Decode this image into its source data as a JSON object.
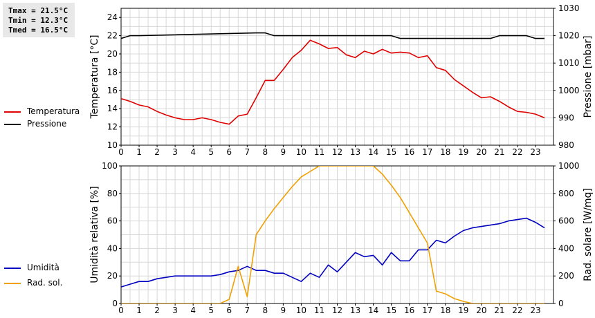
{
  "stats": {
    "tmax": "Tmax = 21.5°C",
    "tmin": "Tmin = 12.3°C",
    "tmed": "Tmed = 16.5°C"
  },
  "chart_data": [
    {
      "type": "line",
      "xlim": [
        0,
        24
      ],
      "x_ticks": [
        "0",
        "1",
        "2",
        "3",
        "4",
        "5",
        "6",
        "7",
        "8",
        "9",
        "10",
        "11",
        "12",
        "13",
        "14",
        "15",
        "16",
        "17",
        "18",
        "19",
        "20",
        "21",
        "22",
        "23"
      ],
      "ylabel": "Temperatura [°C]",
      "ylim": [
        10,
        25
      ],
      "y_ticks": [
        "10",
        "12",
        "14",
        "16",
        "18",
        "20",
        "22",
        "24"
      ],
      "y2label": "Pressione [mbar]",
      "y2lim": [
        980,
        1030
      ],
      "y2_ticks": [
        "980",
        "990",
        "1000",
        "1010",
        "1020",
        "1030"
      ],
      "grid": true,
      "legend_position": "left",
      "series": [
        {
          "name": "Temperatura",
          "axis": "left",
          "color": "#e00000",
          "x": [
            0,
            0.5,
            1,
            1.5,
            2,
            2.5,
            3,
            3.5,
            4,
            4.5,
            5,
            5.5,
            6,
            6.5,
            7,
            7.5,
            8,
            8.5,
            9,
            9.5,
            10,
            10.5,
            11,
            11.5,
            12,
            12.5,
            13,
            13.5,
            14,
            14.5,
            15,
            15.5,
            16,
            16.5,
            17,
            17.5,
            18,
            18.5,
            19,
            19.5,
            20,
            20.5,
            21,
            21.5,
            22,
            22.5,
            23,
            23.5
          ],
          "values": [
            15.1,
            14.8,
            14.4,
            14.2,
            13.7,
            13.3,
            13.0,
            12.8,
            12.8,
            13.0,
            12.8,
            12.5,
            12.3,
            13.2,
            13.4,
            15.2,
            17.1,
            17.1,
            18.3,
            19.6,
            20.4,
            21.5,
            21.1,
            20.6,
            20.7,
            19.9,
            19.6,
            20.3,
            20.0,
            20.5,
            20.1,
            20.2,
            20.1,
            19.6,
            19.8,
            18.5,
            18.2,
            17.2,
            16.5,
            15.8,
            15.2,
            15.3,
            14.8,
            14.2,
            13.7,
            13.6,
            13.4,
            13.0
          ]
        },
        {
          "name": "Pressione",
          "axis": "right",
          "color": "#000000",
          "x": [
            0,
            0.5,
            1,
            7.5,
            8,
            8.5,
            15,
            15.5,
            20.5,
            21,
            22.5,
            23,
            23.5
          ],
          "values": [
            1019,
            1020,
            1020,
            1021,
            1021,
            1020,
            1020,
            1019,
            1019,
            1020,
            1020,
            1019,
            1019
          ]
        }
      ]
    },
    {
      "type": "line",
      "xlim": [
        0,
        24
      ],
      "x_ticks": [
        "0",
        "1",
        "2",
        "3",
        "4",
        "5",
        "6",
        "7",
        "8",
        "9",
        "10",
        "11",
        "12",
        "13",
        "14",
        "15",
        "16",
        "17",
        "18",
        "19",
        "20",
        "21",
        "22",
        "23"
      ],
      "ylabel": "Umidità relativa [%]",
      "ylim": [
        0,
        100
      ],
      "y_ticks": [
        "0",
        "20",
        "40",
        "60",
        "80",
        "100"
      ],
      "y2label": "Rad. solare [W/mq]",
      "y2lim": [
        0,
        1000
      ],
      "y2_ticks": [
        "0",
        "200",
        "400",
        "600",
        "800",
        "1000"
      ],
      "grid": true,
      "legend_position": "left",
      "series": [
        {
          "name": "Umidità",
          "axis": "left",
          "color": "#0000c0",
          "x": [
            0,
            0.5,
            1,
            1.5,
            2,
            2.5,
            3,
            3.5,
            4,
            4.5,
            5,
            5.5,
            6,
            6.5,
            7,
            7.5,
            8,
            8.5,
            9,
            9.5,
            10,
            10.5,
            11,
            11.5,
            12,
            12.5,
            13,
            13.5,
            14,
            14.5,
            15,
            15.5,
            16,
            16.5,
            17,
            17.5,
            18,
            18.5,
            19,
            19.5,
            20,
            20.5,
            21,
            21.5,
            22,
            22.5,
            23,
            23.5
          ],
          "values": [
            12,
            14,
            16,
            16,
            18,
            19,
            20,
            20,
            20,
            20,
            20,
            21,
            23,
            24,
            27,
            24,
            24,
            22,
            22,
            19,
            16,
            22,
            19,
            28,
            23,
            30,
            37,
            34,
            35,
            28,
            37,
            31,
            31,
            39,
            39,
            46,
            44,
            49,
            53,
            55,
            56,
            57,
            58,
            60,
            61,
            62,
            59,
            55
          ]
        },
        {
          "name": "Rad. sol.",
          "axis": "right",
          "color": "#f0a000",
          "x": [
            0,
            0.5,
            1,
            1.5,
            2,
            2.5,
            3,
            3.5,
            4,
            4.5,
            5,
            5.5,
            6,
            6.5,
            7,
            7.5,
            8,
            8.5,
            9,
            9.5,
            10,
            10.5,
            11,
            11.5,
            12,
            12.5,
            13,
            13.5,
            14,
            14.5,
            15,
            15.5,
            16,
            16.5,
            17,
            17.5,
            18,
            18.5,
            19,
            19.5,
            20,
            20.5,
            21,
            21.5,
            22,
            22.5,
            23,
            23.5
          ],
          "values": [
            0,
            0,
            0,
            0,
            0,
            0,
            0,
            0,
            0,
            0,
            0,
            0,
            30,
            270,
            50,
            500,
            600,
            690,
            770,
            850,
            920,
            960,
            1000,
            1000,
            1000,
            1000,
            1000,
            1000,
            1000,
            940,
            860,
            770,
            660,
            550,
            440,
            90,
            70,
            35,
            15,
            0,
            0,
            0,
            0,
            0,
            0,
            0,
            0,
            0
          ]
        }
      ]
    }
  ]
}
